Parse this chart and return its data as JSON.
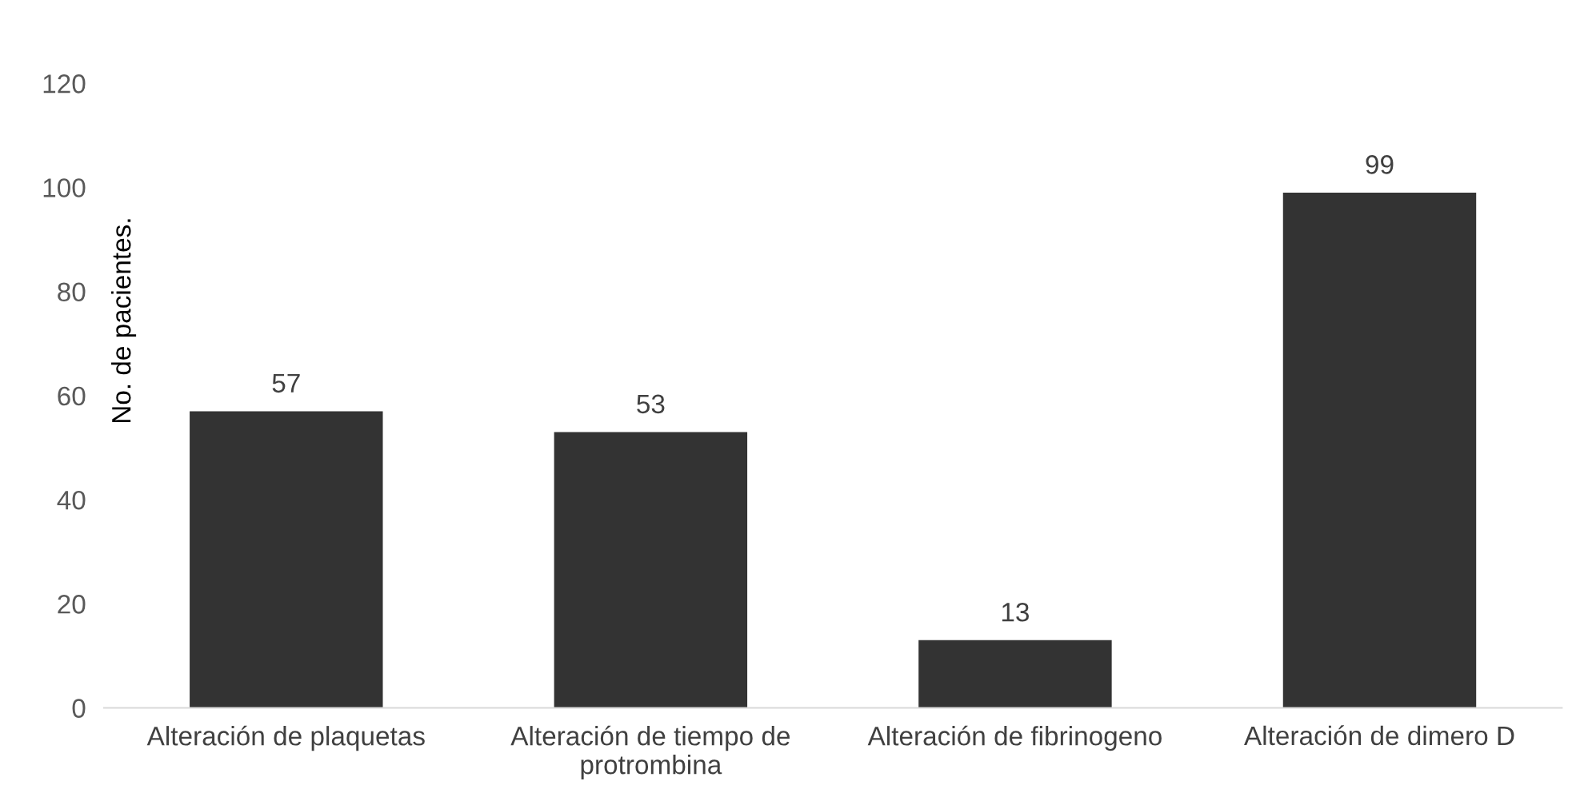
{
  "chart_data": {
    "type": "bar",
    "ylabel": "No. de pacientes.",
    "categories": [
      "Alteración de plaquetas",
      "Alteración de tiempo de\nprotrombina",
      "Alteración de fibrinogeno",
      "Alteración de dimero D"
    ],
    "values": [
      57,
      53,
      13,
      99
    ],
    "color": "#333333",
    "ylim": [
      0,
      120
    ],
    "yticks": [
      0,
      20,
      40,
      60,
      80,
      100,
      120
    ],
    "data_labels": true,
    "grid": false,
    "legend": false
  }
}
